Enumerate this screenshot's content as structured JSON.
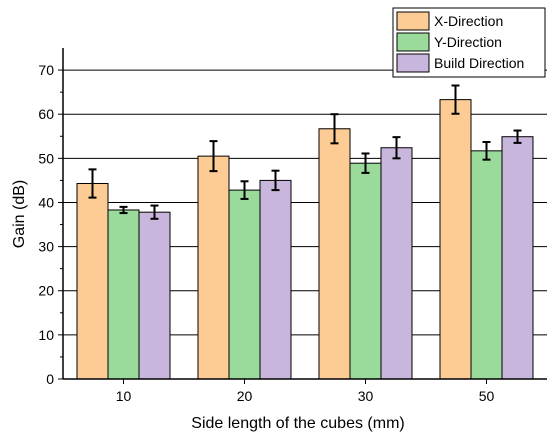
{
  "chart_data": {
    "type": "bar",
    "xlabel": "Side length of the cubes (mm)",
    "ylabel": "Gain (dB)",
    "categories": [
      "10",
      "20",
      "30",
      "50"
    ],
    "ylim": [
      0,
      75
    ],
    "yticks": [
      0,
      10,
      20,
      30,
      40,
      50,
      60,
      70
    ],
    "grid": true,
    "legend_position": "top-right",
    "error_bars": true,
    "series": [
      {
        "name": "X-Direction",
        "color": "#FDCB94",
        "values": [
          44.3,
          50.5,
          56.7,
          63.3
        ],
        "errors": [
          3.2,
          3.4,
          3.3,
          3.2
        ]
      },
      {
        "name": "Y-Direction",
        "color": "#9ADA9A",
        "values": [
          38.3,
          42.8,
          48.9,
          51.7
        ],
        "errors": [
          0.7,
          2.0,
          2.2,
          2.0
        ]
      },
      {
        "name": "Build Direction",
        "color": "#C9B6DC",
        "values": [
          37.8,
          45.0,
          52.4,
          54.9
        ],
        "errors": [
          1.5,
          2.2,
          2.4,
          1.4
        ]
      }
    ]
  }
}
